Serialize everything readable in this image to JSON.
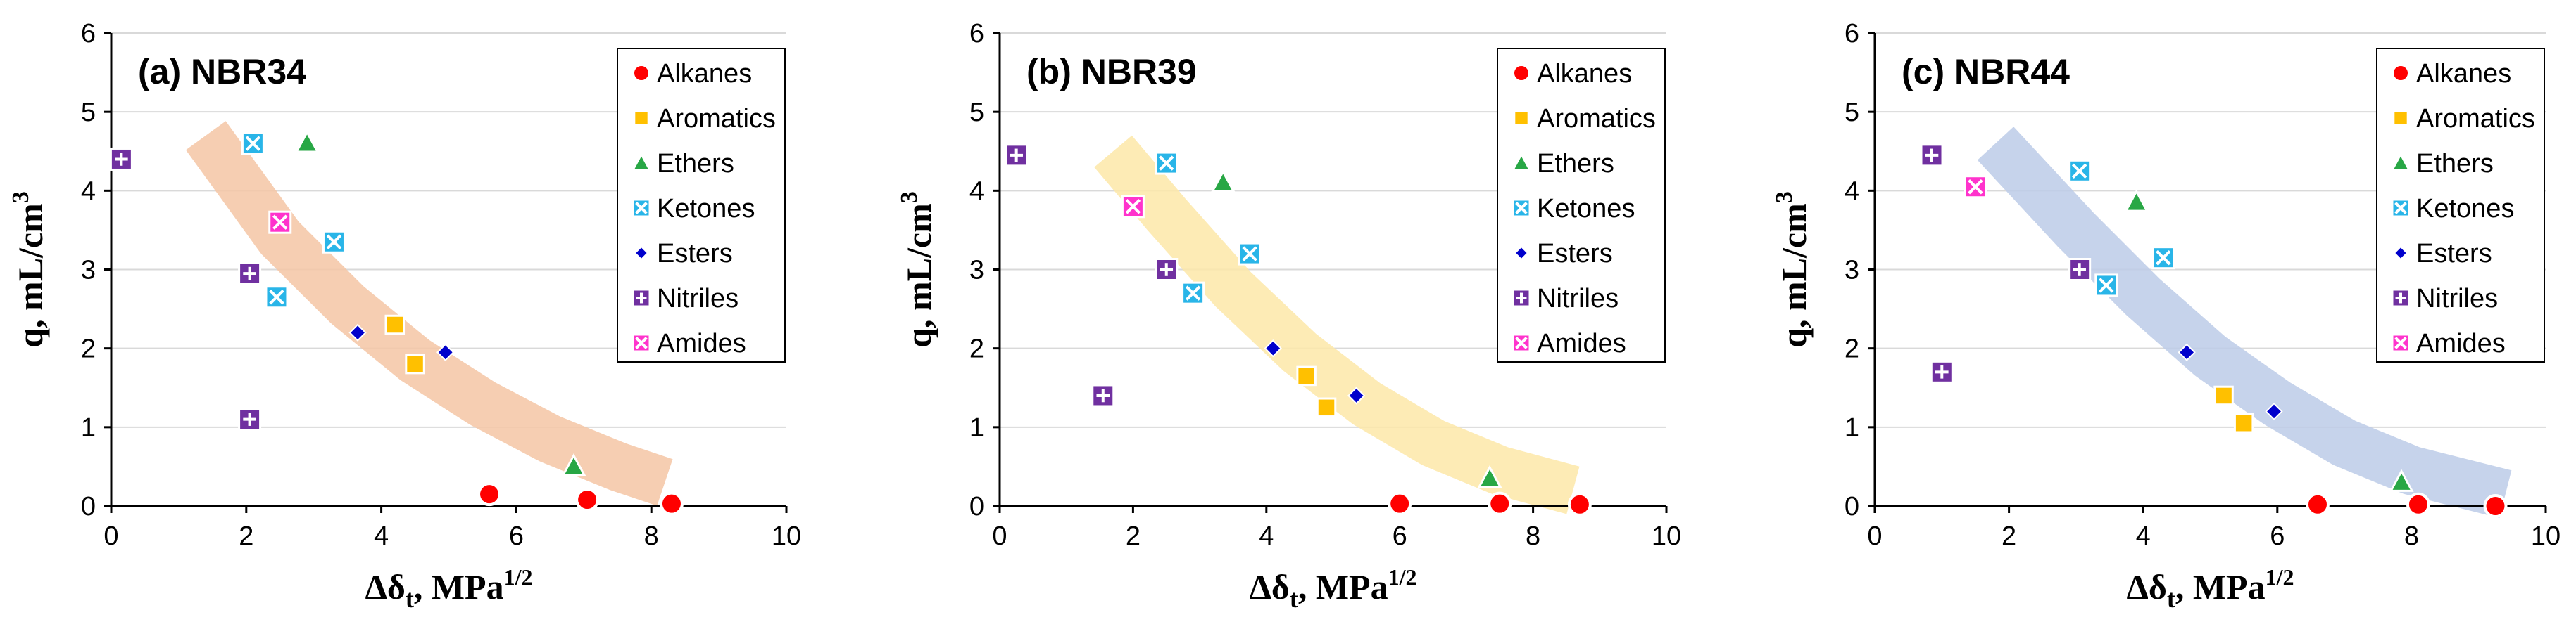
{
  "chart_data": [
    {
      "type": "scatter",
      "title": "(a) NBR34",
      "xlabel": "Δδt, MPa1/2",
      "ylabel": "q, mL/cm3",
      "xlim": [
        0,
        10
      ],
      "ylim": [
        0,
        6
      ],
      "xticks": [
        "0",
        "2",
        "4",
        "6",
        "8",
        "10"
      ],
      "yticks": [
        "0",
        "1",
        "2",
        "3",
        "4",
        "5",
        "6"
      ],
      "grid": "horizontal",
      "legend_position": "top-right",
      "trend_band": {
        "color": "#f5c6a5",
        "x": [
          1.4,
          2.5,
          3.5,
          4.5,
          5.5,
          6.5,
          7.5,
          8.2
        ],
        "y": [
          4.7,
          3.4,
          2.55,
          1.85,
          1.3,
          0.85,
          0.5,
          0.3
        ]
      },
      "series": [
        {
          "name": "Alkanes",
          "marker": "circle",
          "color": "#ff0000",
          "x": [
            5.6,
            7.05,
            8.3
          ],
          "y": [
            0.15,
            0.08,
            0.03
          ]
        },
        {
          "name": "Aromatics",
          "marker": "square",
          "color": "#ffc000",
          "x": [
            4.2,
            4.5
          ],
          "y": [
            2.3,
            1.8
          ]
        },
        {
          "name": "Ethers",
          "marker": "triangle",
          "color": "#28a745",
          "x": [
            2.9,
            6.85
          ],
          "y": [
            4.6,
            0.5
          ]
        },
        {
          "name": "Ketones",
          "marker": "box-x",
          "color": "#29b5e8",
          "x": [
            2.1,
            3.3,
            2.45
          ],
          "y": [
            4.6,
            3.35,
            2.65
          ]
        },
        {
          "name": "Esters",
          "marker": "diamond",
          "color": "#0000cc",
          "x": [
            3.65,
            4.95
          ],
          "y": [
            2.2,
            1.95
          ]
        },
        {
          "name": "Nitriles",
          "marker": "box-plus",
          "color": "#7030a0",
          "x": [
            0.15,
            2.05,
            2.05
          ],
          "y": [
            4.4,
            2.95,
            1.1
          ]
        },
        {
          "name": "Amides",
          "marker": "box-x",
          "color": "#ff33cc",
          "x": [
            2.5
          ],
          "y": [
            3.6
          ]
        }
      ]
    },
    {
      "type": "scatter",
      "title": "(b) NBR39",
      "xlabel": "Δδt, MPa1/2",
      "ylabel": "q, mL/cm3",
      "xlim": [
        0,
        10
      ],
      "ylim": [
        0,
        6
      ],
      "xticks": [
        "0",
        "2",
        "4",
        "6",
        "8",
        "10"
      ],
      "yticks": [
        "0",
        "1",
        "2",
        "3",
        "4",
        "5",
        "6"
      ],
      "grid": "horizontal",
      "legend_position": "top-right",
      "trend_band": {
        "color": "#fde7a8",
        "x": [
          1.7,
          2.5,
          3.5,
          4.5,
          5.5,
          6.5,
          7.5,
          8.6
        ],
        "y": [
          4.5,
          3.7,
          2.75,
          1.95,
          1.3,
          0.8,
          0.45,
          0.2
        ]
      },
      "series": [
        {
          "name": "Alkanes",
          "marker": "circle",
          "color": "#ff0000",
          "x": [
            6.0,
            7.5,
            8.7
          ],
          "y": [
            0.03,
            0.03,
            0.02
          ]
        },
        {
          "name": "Aromatics",
          "marker": "square",
          "color": "#ffc000",
          "x": [
            4.6,
            4.9
          ],
          "y": [
            1.65,
            1.25
          ]
        },
        {
          "name": "Ethers",
          "marker": "triangle",
          "color": "#28a745",
          "x": [
            3.35,
            7.35
          ],
          "y": [
            4.1,
            0.35
          ]
        },
        {
          "name": "Ketones",
          "marker": "box-x",
          "color": "#29b5e8",
          "x": [
            2.5,
            3.75,
            2.9
          ],
          "y": [
            4.35,
            3.2,
            2.7
          ]
        },
        {
          "name": "Esters",
          "marker": "diamond",
          "color": "#0000cc",
          "x": [
            4.1,
            5.35
          ],
          "y": [
            2.0,
            1.4
          ]
        },
        {
          "name": "Nitriles",
          "marker": "box-plus",
          "color": "#7030a0",
          "x": [
            0.25,
            2.5,
            1.55
          ],
          "y": [
            4.45,
            3.0,
            1.4
          ]
        },
        {
          "name": "Amides",
          "marker": "box-x",
          "color": "#ff33cc",
          "x": [
            2.0
          ],
          "y": [
            3.8
          ]
        }
      ]
    },
    {
      "type": "scatter",
      "title": "(c) NBR44",
      "xlabel": "Δδt, MPa1/2",
      "ylabel": "q, mL/cm3",
      "xlim": [
        0,
        10
      ],
      "ylim": [
        0,
        6
      ],
      "xticks": [
        "0",
        "2",
        "4",
        "6",
        "8",
        "10"
      ],
      "yticks": [
        "0",
        "1",
        "2",
        "3",
        "4",
        "5",
        "6"
      ],
      "grid": "horizontal",
      "legend_position": "top-right",
      "trend_band": {
        "color": "#bccbe8",
        "x": [
          1.8,
          3.0,
          4.0,
          5.0,
          6.0,
          7.0,
          8.0,
          9.4
        ],
        "y": [
          4.6,
          3.5,
          2.65,
          1.9,
          1.3,
          0.8,
          0.45,
          0.15
        ]
      },
      "series": [
        {
          "name": "Alkanes",
          "marker": "circle",
          "color": "#ff0000",
          "x": [
            6.6,
            8.1,
            9.25
          ],
          "y": [
            0.02,
            0.02,
            0.0
          ]
        },
        {
          "name": "Aromatics",
          "marker": "square",
          "color": "#ffc000",
          "x": [
            5.2,
            5.5
          ],
          "y": [
            1.4,
            1.05
          ]
        },
        {
          "name": "Ethers",
          "marker": "triangle",
          "color": "#28a745",
          "x": [
            3.9,
            7.85
          ],
          "y": [
            3.85,
            0.3
          ]
        },
        {
          "name": "Ketones",
          "marker": "box-x",
          "color": "#29b5e8",
          "x": [
            3.05,
            4.3,
            3.45
          ],
          "y": [
            4.25,
            3.15,
            2.8
          ]
        },
        {
          "name": "Esters",
          "marker": "diamond",
          "color": "#0000cc",
          "x": [
            4.65,
            5.95
          ],
          "y": [
            1.95,
            1.2
          ]
        },
        {
          "name": "Nitriles",
          "marker": "box-plus",
          "color": "#7030a0",
          "x": [
            0.85,
            3.05,
            1.0
          ],
          "y": [
            4.45,
            3.0,
            1.7
          ]
        },
        {
          "name": "Amides",
          "marker": "box-x",
          "color": "#ff33cc",
          "x": [
            1.5
          ],
          "y": [
            4.05
          ]
        }
      ]
    }
  ]
}
